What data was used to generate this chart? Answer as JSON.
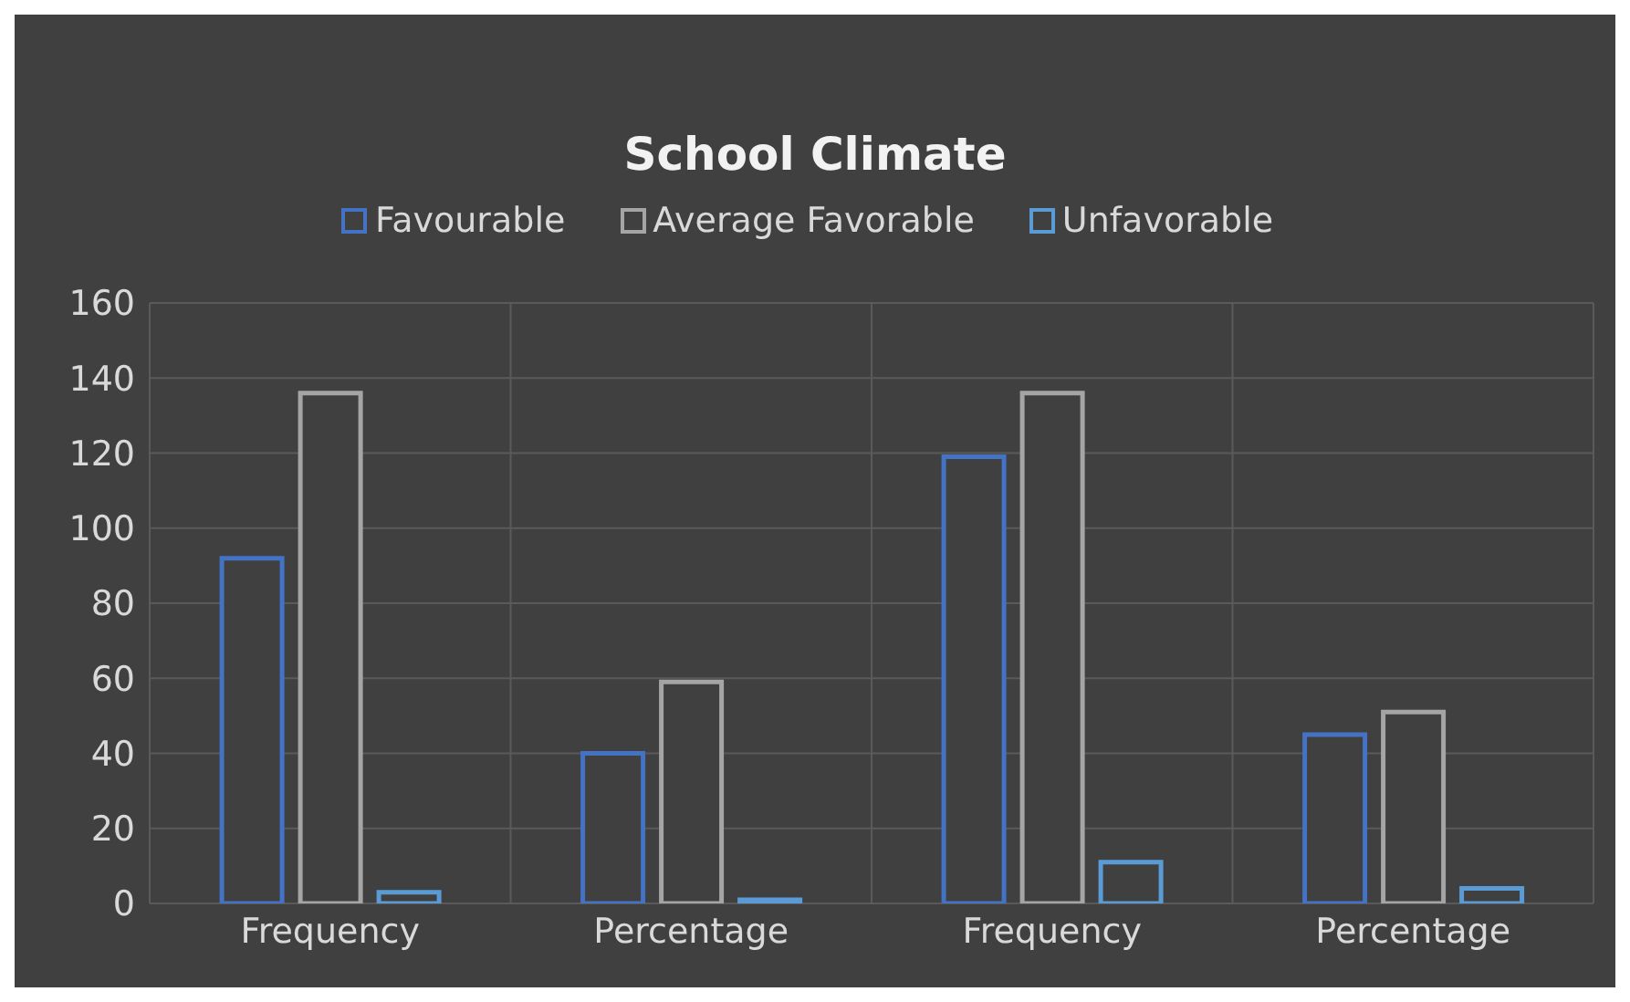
{
  "chart_data": {
    "type": "bar",
    "title": "School Climate",
    "categories": [
      "Frequency",
      "Percentage",
      "Frequency",
      "Percentage"
    ],
    "series": [
      {
        "name": "Favourable",
        "color": "#4472c4",
        "values": [
          92,
          40,
          119,
          45
        ]
      },
      {
        "name": "Average Favorable",
        "color": "#a5a5a5",
        "values": [
          136,
          59,
          136,
          51
        ]
      },
      {
        "name": "Unfavorable",
        "color": "#5b9bd5",
        "values": [
          3,
          1,
          11,
          4
        ]
      }
    ],
    "ylim": [
      0,
      160
    ],
    "yticks": [
      0,
      20,
      40,
      60,
      80,
      100,
      120,
      140,
      160
    ],
    "grid": true,
    "legend": "top"
  }
}
